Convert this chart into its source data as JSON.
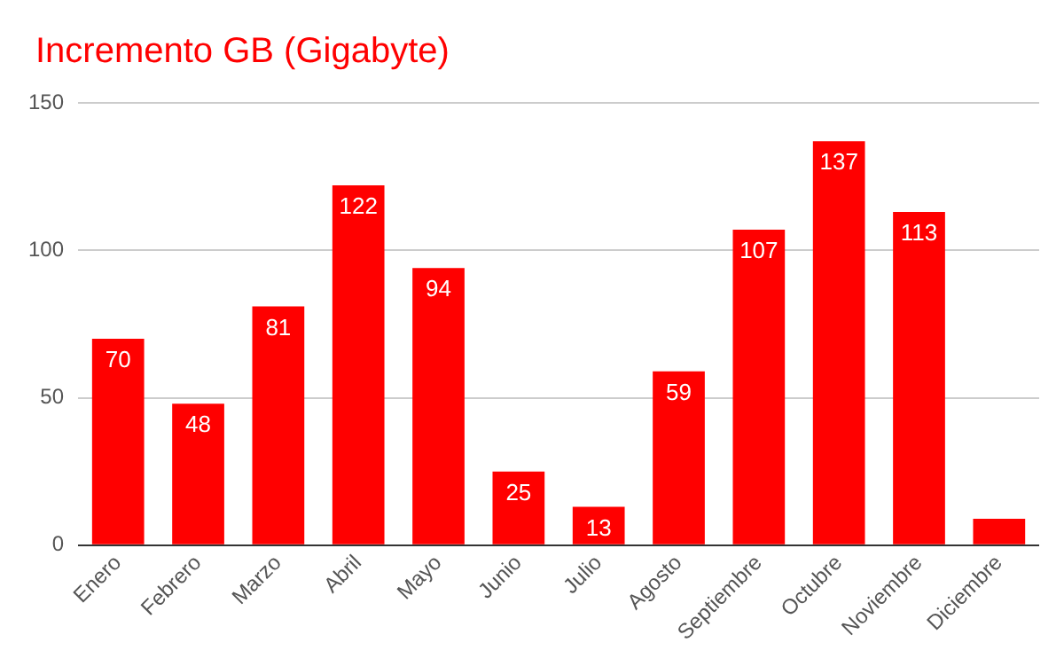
{
  "chart_data": {
    "type": "bar",
    "title": "Incremento GB (Gigabyte)",
    "categories": [
      "Enero",
      "Febrero",
      "Marzo",
      "Abril",
      "Mayo",
      "Junio",
      "Julio",
      "Agosto",
      "Septiembre",
      "Octubre",
      "Noviembre",
      "Diciembre"
    ],
    "values": [
      70,
      48,
      81,
      122,
      94,
      25,
      13,
      59,
      107,
      137,
      113,
      9
    ],
    "value_labels": [
      "70",
      "48",
      "81",
      "122",
      "94",
      "25",
      "13",
      "59",
      "107",
      "137",
      "113",
      null
    ],
    "color": "#ff0000",
    "ylim": [
      0,
      150
    ],
    "yticks": [
      0,
      50,
      100,
      150
    ],
    "grid": "y",
    "legend": false
  }
}
